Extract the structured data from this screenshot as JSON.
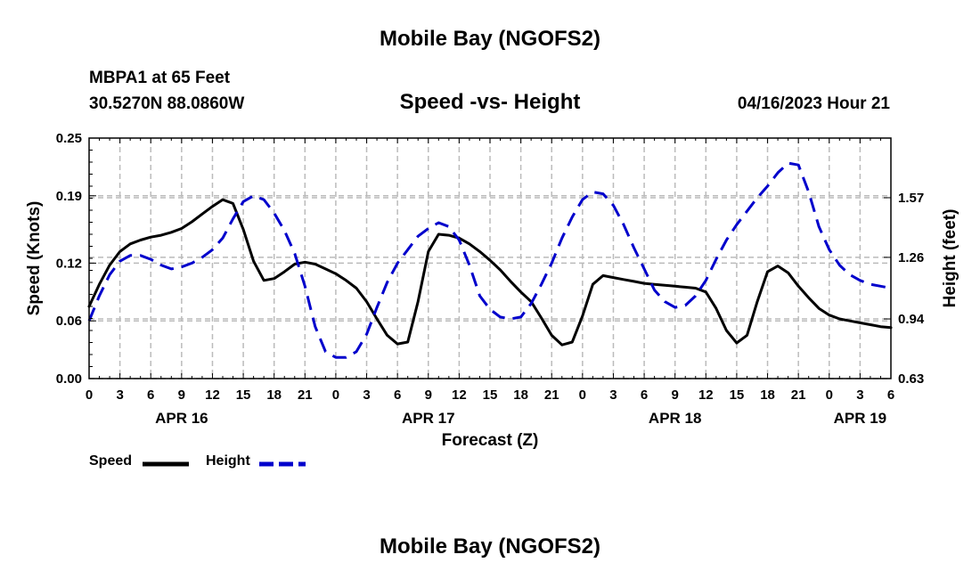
{
  "header": {
    "title": "Mobile Bay (NGOFS2)",
    "station": "MBPA1 at 65 Feet",
    "coords": "30.5270N  88.0860W",
    "subtitle": "Speed -vs- Height",
    "datetime": "04/16/2023 Hour 21"
  },
  "footer": {
    "title": "Mobile Bay (NGOFS2)"
  },
  "legend": {
    "speed_label": "Speed",
    "height_label": "Height"
  },
  "colors": {
    "speed": "#000000",
    "height": "#0000cc",
    "grid": "#bbbbbb"
  },
  "chart_data": {
    "type": "line",
    "xlabel": "Forecast (Z)",
    "ylabel": "Speed (Knots)",
    "y2label": "Height (feet)",
    "xlim": [
      0,
      78
    ],
    "ylim": [
      0,
      0.25
    ],
    "y2lim": [
      0.63,
      1.88
    ],
    "x_ticks": [
      0,
      3,
      6,
      9,
      12,
      15,
      18,
      21,
      24,
      27,
      30,
      33,
      36,
      39,
      42,
      45,
      48,
      51,
      54,
      57,
      60,
      63,
      66,
      69,
      72,
      75,
      78
    ],
    "x_tick_labels": [
      "0",
      "3",
      "6",
      "9",
      "12",
      "15",
      "18",
      "21",
      "0",
      "3",
      "6",
      "9",
      "12",
      "15",
      "18",
      "21",
      "0",
      "3",
      "6",
      "9",
      "12",
      "15",
      "18",
      "21",
      "0",
      "3",
      "6"
    ],
    "date_labels": [
      {
        "x": 9,
        "label": "APR 16"
      },
      {
        "x": 33,
        "label": "APR 17"
      },
      {
        "x": 57,
        "label": "APR 18"
      },
      {
        "x": 75,
        "label": "APR 19"
      }
    ],
    "y_ticks": [
      0.0,
      0.06,
      0.12,
      0.19,
      0.25
    ],
    "y_tick_labels": [
      "0.00",
      "0.06",
      "0.12",
      "0.19",
      "0.25"
    ],
    "y2_ticks": [
      0.63,
      0.94,
      1.26,
      1.57
    ],
    "y2_tick_labels": [
      "0.63",
      "0.94",
      "1.26",
      "1.57"
    ],
    "series": [
      {
        "name": "Speed",
        "axis": "left",
        "style": "solid",
        "x": [
          0,
          1,
          2,
          3,
          4,
          5,
          6,
          7,
          8,
          9,
          10,
          11,
          12,
          13,
          14,
          15,
          16,
          17,
          18,
          19,
          20,
          21,
          22,
          23,
          24,
          25,
          26,
          27,
          28,
          29,
          30,
          31,
          32,
          33,
          34,
          35,
          36,
          37,
          38,
          39,
          40,
          41,
          42,
          43,
          44,
          45,
          46,
          47,
          48,
          49,
          50,
          51,
          52,
          53,
          54,
          55,
          56,
          57,
          58,
          59,
          60,
          61,
          62,
          63,
          64,
          65,
          66,
          67,
          68,
          69,
          70,
          71,
          72,
          73,
          74,
          75,
          76,
          77,
          78
        ],
        "values": [
          0.075,
          0.098,
          0.118,
          0.132,
          0.14,
          0.144,
          0.147,
          0.149,
          0.152,
          0.156,
          0.163,
          0.171,
          0.179,
          0.186,
          0.182,
          0.155,
          0.122,
          0.102,
          0.104,
          0.111,
          0.119,
          0.121,
          0.119,
          0.114,
          0.109,
          0.102,
          0.094,
          0.08,
          0.062,
          0.045,
          0.036,
          0.038,
          0.08,
          0.132,
          0.15,
          0.149,
          0.146,
          0.14,
          0.132,
          0.123,
          0.113,
          0.101,
          0.09,
          0.08,
          0.063,
          0.045,
          0.035,
          0.038,
          0.065,
          0.098,
          0.107,
          0.105,
          0.103,
          0.101,
          0.099,
          0.098,
          0.097,
          0.096,
          0.095,
          0.094,
          0.09,
          0.073,
          0.05,
          0.037,
          0.045,
          0.08,
          0.111,
          0.117,
          0.11,
          0.096,
          0.084,
          0.073,
          0.066,
          0.062,
          0.06,
          0.058,
          0.056,
          0.054,
          0.053
        ]
      },
      {
        "name": "Height",
        "axis": "right",
        "style": "dashed",
        "x": [
          0,
          1,
          2,
          3,
          4,
          5,
          6,
          7,
          8,
          9,
          10,
          11,
          12,
          13,
          14,
          15,
          16,
          17,
          18,
          19,
          20,
          21,
          22,
          23,
          24,
          25,
          26,
          27,
          28,
          29,
          30,
          31,
          32,
          33,
          34,
          35,
          36,
          37,
          38,
          39,
          40,
          41,
          42,
          43,
          44,
          45,
          46,
          47,
          48,
          49,
          50,
          51,
          52,
          53,
          54,
          55,
          56,
          57,
          58,
          59,
          60,
          61,
          62,
          63,
          64,
          65,
          66,
          67,
          68,
          69,
          70,
          71,
          72,
          73,
          74,
          75,
          76,
          77,
          78
        ],
        "values": [
          0.93,
          1.06,
          1.17,
          1.24,
          1.27,
          1.27,
          1.25,
          1.22,
          1.2,
          1.21,
          1.23,
          1.26,
          1.3,
          1.36,
          1.46,
          1.55,
          1.58,
          1.56,
          1.49,
          1.4,
          1.28,
          1.11,
          0.9,
          0.77,
          0.74,
          0.74,
          0.77,
          0.86,
          1.0,
          1.13,
          1.23,
          1.3,
          1.37,
          1.41,
          1.44,
          1.42,
          1.35,
          1.22,
          1.06,
          0.99,
          0.95,
          0.94,
          0.95,
          1.02,
          1.12,
          1.23,
          1.36,
          1.47,
          1.56,
          1.6,
          1.59,
          1.53,
          1.43,
          1.31,
          1.2,
          1.09,
          1.03,
          1.0,
          1.01,
          1.06,
          1.14,
          1.25,
          1.35,
          1.43,
          1.5,
          1.57,
          1.63,
          1.7,
          1.75,
          1.74,
          1.6,
          1.42,
          1.3,
          1.22,
          1.17,
          1.14,
          1.12,
          1.11,
          1.1
        ]
      }
    ]
  }
}
